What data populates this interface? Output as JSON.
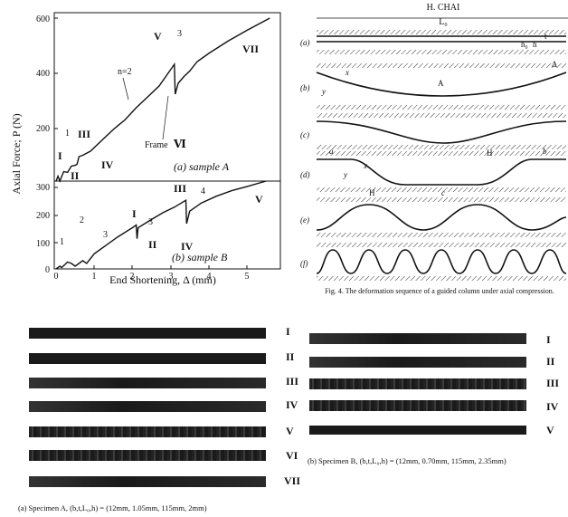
{
  "chart_data": [
    {
      "type": "line",
      "panel": "(a) sample A",
      "ylabel": "Axial Force; P (N)",
      "ylim": [
        0,
        600
      ],
      "xlim": [
        0,
        5.8
      ],
      "yticks": [
        "0",
        "200",
        "400",
        "600"
      ],
      "series": [
        {
          "values": [
            [
              0,
              0
            ],
            [
              0.05,
              18
            ],
            [
              0.1,
              0
            ],
            [
              0.2,
              35
            ],
            [
              0.3,
              32
            ],
            [
              0.4,
              55
            ],
            [
              0.5,
              58
            ],
            [
              0.55,
              62
            ],
            [
              0.6,
              90
            ],
            [
              0.7,
              95
            ],
            [
              0.9,
              110
            ],
            [
              1.2,
              150
            ],
            [
              1.5,
              190
            ],
            [
              1.8,
              225
            ],
            [
              2.1,
              270
            ],
            [
              2.4,
              310
            ],
            [
              2.7,
              350
            ],
            [
              3.0,
              410
            ],
            [
              3.1,
              430
            ],
            [
              3.12,
              320
            ],
            [
              3.2,
              360
            ],
            [
              3.35,
              385
            ],
            [
              3.5,
              405
            ],
            [
              3.7,
              440
            ],
            [
              4.0,
              470
            ],
            [
              4.5,
              515
            ],
            [
              5.0,
              555
            ],
            [
              5.4,
              585
            ],
            [
              5.6,
              600
            ]
          ]
        }
      ],
      "annotations": {
        "n2": "n=2",
        "frame": "Frame",
        "frame_num": "Ⅵ",
        "one": "1",
        "three": "3",
        "r1": "I",
        "r2": "II",
        "r3": "III",
        "r4": "IV",
        "r5": "V",
        "r7": "VII"
      }
    },
    {
      "type": "line",
      "panel": "(b) sample B",
      "xlabel": "End Shortening, Δ (mm)",
      "ylim": [
        0,
        320
      ],
      "xlim": [
        0,
        5.8
      ],
      "yticks": [
        "0",
        "100",
        "200",
        "300"
      ],
      "xticks": [
        "0",
        "1",
        "2",
        "3",
        "4",
        "5"
      ],
      "series": [
        {
          "values": [
            [
              0,
              0
            ],
            [
              0.1,
              10
            ],
            [
              0.15,
              5
            ],
            [
              0.3,
              25
            ],
            [
              0.4,
              20
            ],
            [
              0.5,
              10
            ],
            [
              0.7,
              30
            ],
            [
              0.8,
              20
            ],
            [
              1.0,
              55
            ],
            [
              1.3,
              85
            ],
            [
              1.6,
              115
            ],
            [
              2.0,
              150
            ],
            [
              2.1,
              160
            ],
            [
              2.12,
              110
            ],
            [
              2.15,
              150
            ],
            [
              2.5,
              180
            ],
            [
              2.8,
              205
            ],
            [
              3.1,
              225
            ],
            [
              3.4,
              250
            ],
            [
              3.42,
              165
            ],
            [
              3.5,
              210
            ],
            [
              3.8,
              240
            ],
            [
              4.2,
              265
            ],
            [
              4.6,
              285
            ],
            [
              5.0,
              300
            ],
            [
              5.5,
              320
            ]
          ]
        }
      ],
      "annotations": {
        "one": "1",
        "two": "2",
        "three_a": "3",
        "three_b": "3",
        "four": "4",
        "r1": "I",
        "r2": "II",
        "r3": "III",
        "r4": "IV",
        "r5": "V"
      }
    }
  ],
  "figure4": {
    "header": "H. CHAI",
    "L0": "L₀",
    "h0": "h₀",
    "h": "h",
    "t": "t",
    "delta": "Δ",
    "x": "x",
    "y": "y",
    "A": "A",
    "a": "a",
    "b": "b",
    "c": "c",
    "H": "H",
    "panels": [
      "(a)",
      "(b)",
      "(c)",
      "(d)",
      "(e)",
      "(f)"
    ],
    "caption": "Fig. 4. The deformation sequence of a guided column under axial compression."
  },
  "photos_a": {
    "labels": [
      "I",
      "II",
      "III",
      "IV",
      "V",
      "VI",
      "VII"
    ],
    "caption": "(a) Specimen A, (b,t,L₀,h) = (12mm, 1.05mm, 115mm, 2mm)"
  },
  "photos_b": {
    "labels": [
      "I",
      "II",
      "III",
      "IV",
      "V"
    ],
    "caption": "(b) Specimen B, (b,t,L₀,h) = (12mm, 0.70mm, 115mm, 2.35mm)"
  }
}
